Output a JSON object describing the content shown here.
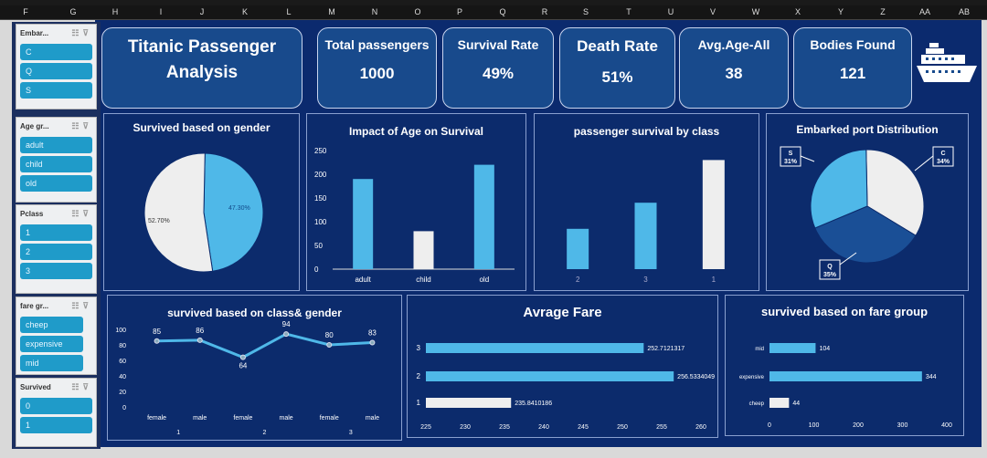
{
  "columns": [
    "F",
    "G",
    "H",
    "I",
    "J",
    "K",
    "L",
    "M",
    "N",
    "O",
    "P",
    "Q",
    "R",
    "S",
    "T",
    "U",
    "V",
    "W",
    "X",
    "Y",
    "Z",
    "AA",
    "AB"
  ],
  "slicers": [
    {
      "title": "Embar...",
      "items": [
        "C",
        "Q",
        "S"
      ]
    },
    {
      "title": "Age gr...",
      "items": [
        "adult",
        "child",
        "old"
      ]
    },
    {
      "title": "Pclass",
      "items": [
        "1",
        "2",
        "3"
      ]
    },
    {
      "title": "fare gr...",
      "items": [
        "cheep",
        "expensive",
        "mid"
      ]
    },
    {
      "title": "Survived",
      "items": [
        "0",
        "1"
      ]
    }
  ],
  "header": {
    "title_line1": "Titanic Passenger",
    "title_line2": "Analysis"
  },
  "kpis": [
    {
      "label": "Total passengers",
      "value": "1000"
    },
    {
      "label": "Survival Rate",
      "value": "49%"
    },
    {
      "label": "Death Rate",
      "value": "51%"
    },
    {
      "label": "Avg.Age-All",
      "value": "38"
    },
    {
      "label": "Bodies Found",
      "value": "121"
    }
  ],
  "colors": {
    "bg": "#0b2a6e",
    "light": "#4fb8e8",
    "white": "#eeeeee",
    "dark": "#1a4f96",
    "slicer": "#1f9bc9"
  },
  "chart_data": [
    {
      "type": "pie",
      "title": "Survived based on gender",
      "slices": [
        {
          "label": "52.70%",
          "value": 52.7,
          "color": "#eeeeee"
        },
        {
          "label": "47.30%",
          "value": 47.3,
          "color": "#4fb8e8"
        }
      ]
    },
    {
      "type": "bar",
      "title": "Impact of Age on Survival",
      "categories": [
        "adult",
        "child",
        "old"
      ],
      "values": [
        190,
        80,
        220
      ],
      "ylim": [
        0,
        250
      ],
      "yticks": [
        "0",
        "50",
        "100",
        "150",
        "200",
        "250"
      ]
    },
    {
      "type": "bar",
      "title": "passenger survival by class",
      "categories": [
        "2",
        "3",
        "1"
      ],
      "values": [
        85,
        140,
        230
      ],
      "ylim": [
        0,
        250
      ]
    },
    {
      "type": "pie",
      "title": "Embarked port Distribution",
      "slices": [
        {
          "label": "C",
          "pct": "34%",
          "value": 34,
          "color": "#eeeeee"
        },
        {
          "label": "Q",
          "pct": "35%",
          "value": 35,
          "color": "#1a4f96"
        },
        {
          "label": "S",
          "pct": "31%",
          "value": 31,
          "color": "#4fb8e8"
        }
      ]
    },
    {
      "type": "line",
      "title": "survived based on class& gender",
      "categories": [
        "female",
        "male",
        "female",
        "male",
        "female",
        "male"
      ],
      "groups": [
        "1",
        "2",
        "3"
      ],
      "values": [
        85,
        86,
        64,
        94,
        80,
        83
      ],
      "ylim": [
        0,
        100
      ],
      "yticks": [
        "0",
        "20",
        "40",
        "60",
        "80",
        "100"
      ]
    },
    {
      "type": "bar",
      "orientation": "horizontal",
      "title": "Avrage Fare",
      "categories": [
        "3",
        "2",
        "1"
      ],
      "values": [
        252.7121317,
        256.5334049,
        235.8410186
      ],
      "labels": [
        "252.7121317",
        "256.5334049",
        "235.8410186"
      ],
      "xlim": [
        225,
        260
      ],
      "xticks": [
        "225",
        "230",
        "235",
        "240",
        "245",
        "250",
        "255",
        "260"
      ]
    },
    {
      "type": "bar",
      "orientation": "horizontal",
      "title": "survived based on fare group",
      "categories": [
        "mid",
        "expensive",
        "cheep"
      ],
      "values": [
        104,
        344,
        44
      ],
      "labels": [
        "104",
        "344",
        "44"
      ],
      "xlim": [
        0,
        400
      ],
      "xticks": [
        "0",
        "100",
        "200",
        "300",
        "400"
      ]
    }
  ]
}
